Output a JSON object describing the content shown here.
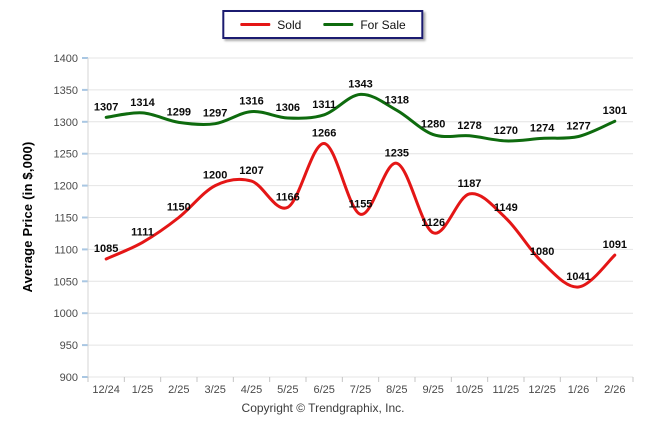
{
  "legend": {
    "items": [
      {
        "label": "Sold",
        "color": "#e41616"
      },
      {
        "label": "For Sale",
        "color": "#0e6b0e"
      }
    ]
  },
  "footer": {
    "copyright": "Copyright © Trendgraphix, Inc."
  },
  "chart_data": {
    "type": "line",
    "smooth": true,
    "grid": true,
    "legend_position": "top-center",
    "title": "",
    "xlabel": "",
    "ylabel": "Average Price (in $,000)",
    "ylim": [
      900,
      1400
    ],
    "ytick_step": 50,
    "yticks": [
      900,
      950,
      1000,
      1050,
      1100,
      1150,
      1200,
      1250,
      1300,
      1350,
      1400
    ],
    "categories": [
      "12/24",
      "1/25",
      "2/25",
      "3/25",
      "4/25",
      "5/25",
      "6/25",
      "7/25",
      "8/25",
      "9/25",
      "10/25",
      "11/25",
      "12/25",
      "1/26",
      "2/26"
    ],
    "series": [
      {
        "name": "Sold",
        "color": "#e41616",
        "values": [
          1085,
          1111,
          1150,
          1200,
          1207,
          1166,
          1266,
          1155,
          1235,
          1126,
          1187,
          1149,
          1080,
          1041,
          1091
        ]
      },
      {
        "name": "For Sale",
        "color": "#0e6b0e",
        "values": [
          1307,
          1314,
          1299,
          1297,
          1316,
          1306,
          1311,
          1343,
          1318,
          1280,
          1278,
          1270,
          1274,
          1277,
          1301
        ]
      }
    ],
    "style_colors": {
      "gridline": "#e4e4e4",
      "axis_line": "#d6d6d6",
      "y_tick_mark": "#a9c7e3",
      "x_tick_mark": "#c4c4c4",
      "tick_text": "#4a4a4a",
      "data_label_text": "#0a0a0a",
      "legend_border": "#1b1b70"
    }
  }
}
